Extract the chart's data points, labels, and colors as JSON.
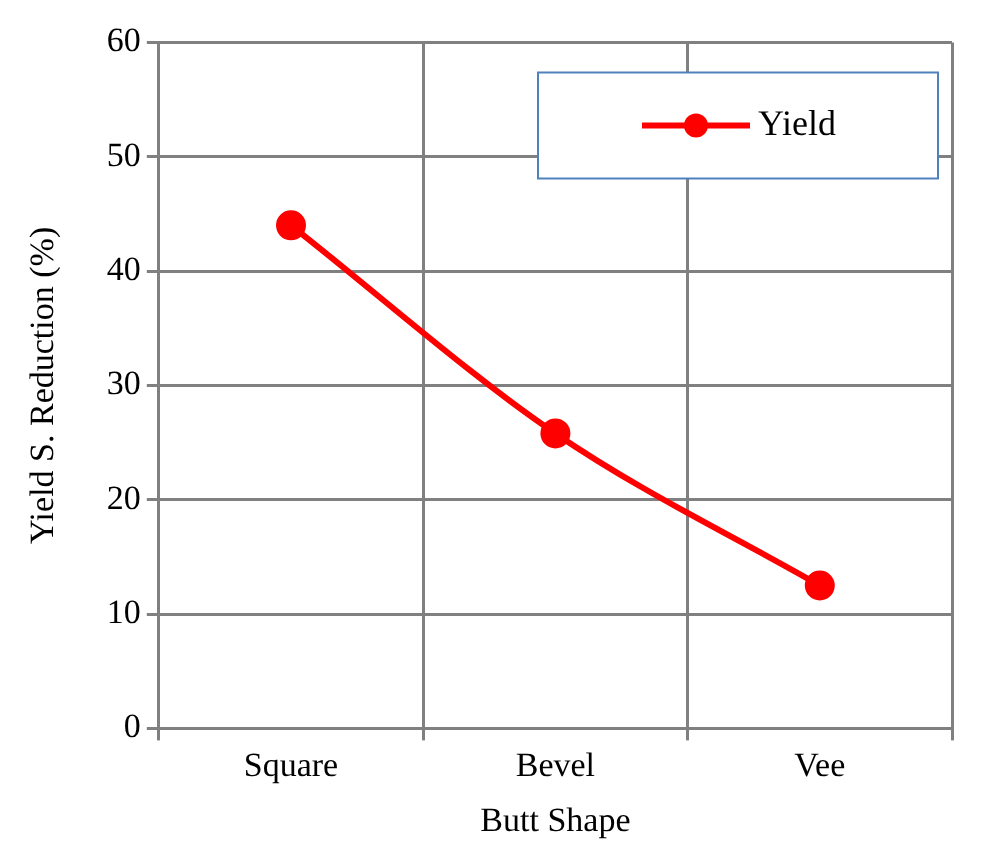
{
  "chart_data": {
    "type": "line",
    "xlabel": "Butt Shape",
    "ylabel": "Yield S. Reduction (%)",
    "categories": [
      "Square",
      "Bevel",
      "Vee"
    ],
    "series": [
      {
        "name": "Yield",
        "color": "#ff0000",
        "values": [
          44,
          25.8,
          12.5
        ]
      }
    ],
    "ylim": [
      0,
      60
    ],
    "yticks": [
      0,
      10,
      20,
      30,
      40,
      50,
      60
    ],
    "grid": true,
    "legend": "top right",
    "marker": "circle",
    "line_style": "solid"
  }
}
